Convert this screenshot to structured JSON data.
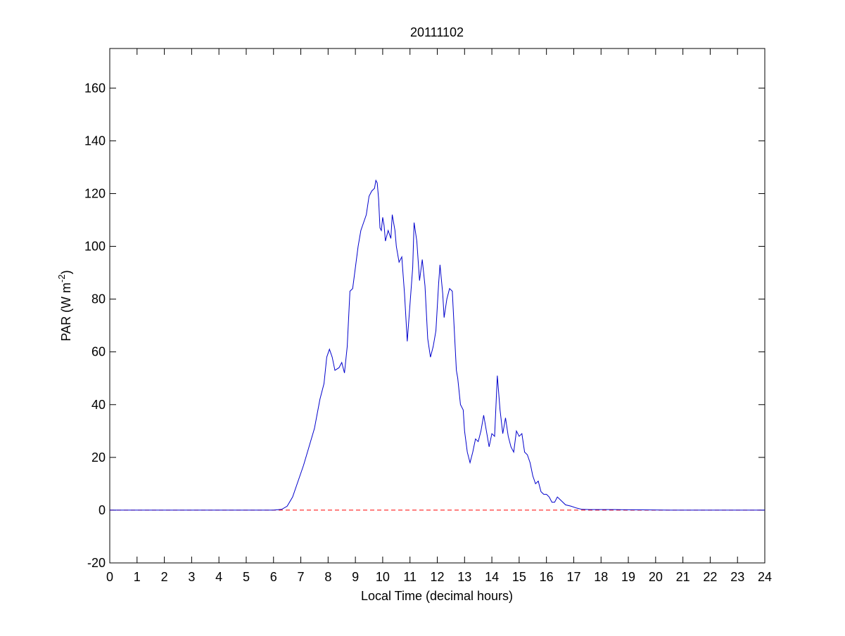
{
  "chart_data": {
    "type": "line",
    "title": "20111102",
    "xlabel": "Local Time (decimal hours)",
    "ylabel_parts": [
      "PAR (W m",
      "-2",
      ")"
    ],
    "x": [
      0,
      6.0,
      6.3,
      6.5,
      6.7,
      6.9,
      7.1,
      7.3,
      7.5,
      7.7,
      7.85,
      7.95,
      8.05,
      8.15,
      8.25,
      8.4,
      8.5,
      8.6,
      8.7,
      8.8,
      8.9,
      9.0,
      9.1,
      9.2,
      9.3,
      9.4,
      9.5,
      9.6,
      9.7,
      9.75,
      9.8,
      9.85,
      9.9,
      9.95,
      10.0,
      10.05,
      10.1,
      10.2,
      10.3,
      10.35,
      10.45,
      10.5,
      10.6,
      10.7,
      10.8,
      10.9,
      11.0,
      11.1,
      11.15,
      11.25,
      11.35,
      11.45,
      11.55,
      11.65,
      11.75,
      11.85,
      11.95,
      12.05,
      12.1,
      12.2,
      12.25,
      12.35,
      12.45,
      12.55,
      12.65,
      12.7,
      12.75,
      12.85,
      12.95,
      13.0,
      13.1,
      13.2,
      13.3,
      13.4,
      13.5,
      13.6,
      13.7,
      13.8,
      13.9,
      14.0,
      14.1,
      14.2,
      14.3,
      14.4,
      14.5,
      14.6,
      14.7,
      14.8,
      14.9,
      15.0,
      15.1,
      15.2,
      15.3,
      15.4,
      15.5,
      15.6,
      15.7,
      15.8,
      15.9,
      16.0,
      16.1,
      16.2,
      16.3,
      16.4,
      16.5,
      16.7,
      16.9,
      17.1,
      17.3,
      17.6,
      18.5,
      19.5,
      20.5,
      24
    ],
    "series": [
      {
        "color": "#0000cc",
        "values": [
          0,
          0,
          0.3,
          1.5,
          5,
          11,
          17,
          24,
          31,
          42,
          48,
          58,
          61,
          58,
          53,
          54,
          56,
          52,
          62,
          83,
          84,
          92,
          100,
          106,
          109,
          112,
          119,
          121,
          122,
          125,
          124,
          118,
          107,
          106,
          111,
          108,
          102,
          106,
          103,
          112,
          106,
          100,
          94,
          96,
          82,
          64,
          78,
          92,
          109,
          102,
          87,
          95,
          85,
          65,
          58,
          62,
          68,
          86,
          93,
          82,
          73,
          80,
          84,
          83,
          63,
          53,
          50,
          40,
          38,
          30,
          22,
          18,
          22,
          27,
          26,
          30,
          36,
          30,
          24,
          29,
          28,
          51,
          38,
          29,
          35,
          28,
          24,
          22,
          30,
          28,
          29,
          22,
          21,
          18,
          13,
          10,
          11,
          7,
          6,
          6,
          5,
          3,
          3,
          5,
          4,
          2,
          1.5,
          0.8,
          0.3,
          0.2,
          0.2,
          0.1,
          0,
          0
        ]
      }
    ],
    "reference_line": {
      "value": 0,
      "color": "#ff0000"
    },
    "xlim": [
      0,
      24
    ],
    "xticks": [
      0,
      1,
      2,
      3,
      4,
      5,
      6,
      7,
      8,
      9,
      10,
      11,
      12,
      13,
      14,
      15,
      16,
      17,
      18,
      19,
      20,
      21,
      22,
      23,
      24
    ],
    "ylim": [
      -20,
      175
    ],
    "yticks": [
      -20,
      0,
      20,
      40,
      60,
      80,
      100,
      120,
      140,
      160
    ]
  }
}
